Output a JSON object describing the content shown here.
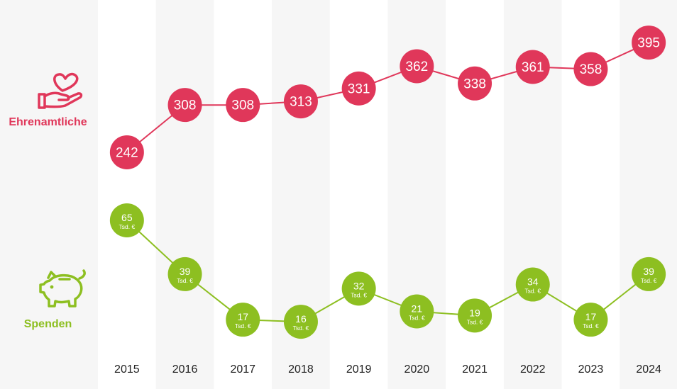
{
  "colors": {
    "volunteers": "#e0375a",
    "donations": "#8dbf21",
    "column_light": "#ffffff",
    "column_dark": "#f6f6f6",
    "year_text": "#222222",
    "bubble_text": "#ffffff"
  },
  "legend": {
    "volunteers": {
      "label": "Ehrenamtliche",
      "icon": "heart-in-hand-icon"
    },
    "donations": {
      "label": "Spenden",
      "icon": "piggy-bank-icon"
    }
  },
  "chart_data": {
    "type": "line",
    "categories": [
      "2015",
      "2016",
      "2017",
      "2018",
      "2019",
      "2020",
      "2021",
      "2022",
      "2023",
      "2024"
    ],
    "series": [
      {
        "name": "Ehrenamtliche",
        "values": [
          242,
          308,
          308,
          313,
          331,
          362,
          338,
          361,
          358,
          395
        ]
      },
      {
        "name": "Spenden",
        "unit": "Tsd. €",
        "values": [
          65,
          39,
          17,
          16,
          32,
          21,
          19,
          34,
          17,
          39
        ]
      }
    ],
    "grid": false,
    "axes_visible": false
  }
}
